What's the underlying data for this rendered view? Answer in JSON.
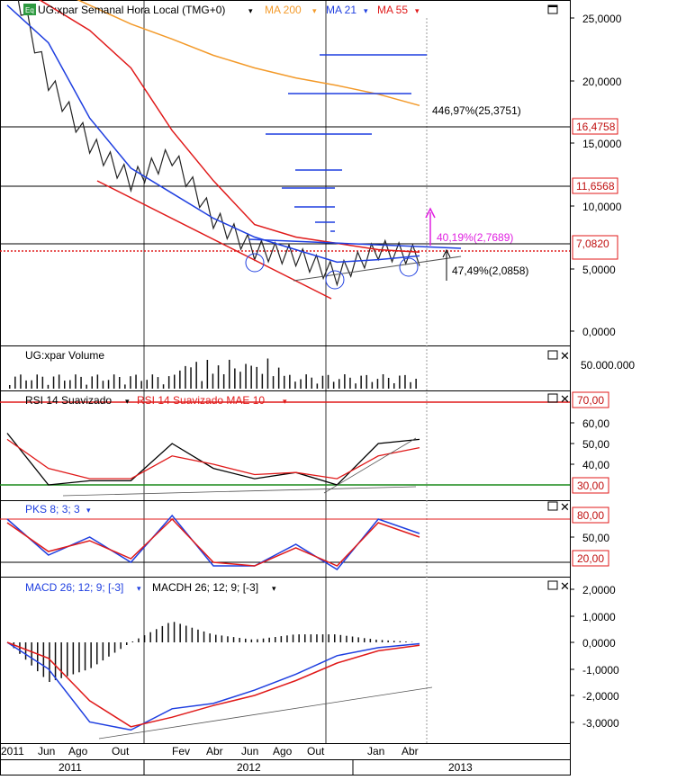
{
  "price_panel": {
    "eq_badge": "Eq",
    "title": "UG:xpar Semanal Hora Local (TMG+0)",
    "ma200_label": "MA 200",
    "ma21_label": "MA 21",
    "ma55_label": "MA 55",
    "y_ticks": [
      "25,0000",
      "20,0000",
      "15,0000",
      "10,0000",
      "5,0000",
      "0,0000"
    ],
    "level_tags": [
      "16,4758",
      "11,6568",
      "7,0820"
    ],
    "annot_target": "446,97%(25,3751)",
    "annot_up": "40,19%(2,7689)",
    "annot_down": "47,49%(2,0858)"
  },
  "volume_panel": {
    "title": "UG:xpar Volume",
    "y_tick": "50.000.000"
  },
  "rsi_panel": {
    "title1": "RSI 14 Suavizado",
    "title2": "RSI 14 Suavizado MAE 10",
    "y_ticks": [
      "60,00",
      "50,00",
      "40,00"
    ],
    "tag_top": "70,00",
    "tag_bottom": "30,00"
  },
  "pks_panel": {
    "title": "PKS 8; 3; 3",
    "y_tick": "50,00",
    "tag_top": "80,00",
    "tag_bottom": "20,00"
  },
  "macd_panel": {
    "title1": "MACD 26; 12; 9; [-3]",
    "title2": "MACDH 26; 12; 9; [-3]",
    "y_ticks": [
      "2,0000",
      "1,0000",
      "0,0000",
      "-1,0000",
      "-2,0000",
      "-3,0000"
    ]
  },
  "x_axis": {
    "months": [
      "2011",
      "Jun",
      "Ago",
      "Out",
      "Fev",
      "Abr",
      "Jun",
      "Ago",
      "Out",
      "Jan",
      "Abr"
    ],
    "years": [
      "2011",
      "2012",
      "2013"
    ]
  },
  "colors": {
    "ma21": "#1f3fe0",
    "ma55": "#e01a1a",
    "ma200": "#f39a2a",
    "rsi_signal": "#e01a1a",
    "accent_magenta": "#e020e0"
  },
  "chart_data": [
    {
      "type": "line",
      "title": "UG:xpar Semanal Hora Local (TMG+0)",
      "ylim": [
        -1,
        27
      ],
      "y_ticks": [
        0,
        5,
        10,
        15,
        20,
        25
      ],
      "x": [
        "2011",
        "Jun",
        "Ago",
        "Out",
        "Fev",
        "Abr",
        "Jun",
        "Ago",
        "Out",
        "Jan",
        "Abr"
      ],
      "series": [
        {
          "name": "UG:xpar",
          "values": [
            29,
            20,
            15,
            12,
            14,
            9,
            6.5,
            6,
            4.5,
            6.5,
            6
          ]
        },
        {
          "name": "MA 21",
          "values": [
            26,
            23,
            17,
            13,
            11,
            9,
            7.5,
            6.5,
            5.5,
            5.7,
            6
          ]
        },
        {
          "name": "MA 55",
          "values": [
            28,
            26,
            24,
            21,
            16,
            12,
            8.5,
            7.5,
            7,
            6.5,
            6.3
          ]
        },
        {
          "name": "MA 200",
          "values": [
            29,
            27.5,
            26,
            24.5,
            23.3,
            22,
            21,
            20.2,
            19.6,
            18.9,
            18
          ]
        }
      ],
      "levels": [
        16.4758,
        11.6568,
        7.082
      ],
      "annotations": [
        "446,97%(25,3751)",
        "40,19%(2,7689)",
        "47,49%(2,0858)"
      ]
    },
    {
      "type": "bar",
      "title": "UG:xpar Volume",
      "x": [
        "2011",
        "Jun",
        "Ago",
        "Out",
        "Fev",
        "Abr",
        "Jun",
        "Ago",
        "Out",
        "Jan",
        "Abr"
      ],
      "y_ticks": [
        50000000
      ]
    },
    {
      "type": "line",
      "ylim": [
        20,
        72
      ],
      "y_ticks": [
        30,
        40,
        50,
        60,
        70
      ],
      "x": [
        "2011",
        "Jun",
        "Ago",
        "Out",
        "Fev",
        "Abr",
        "Jun",
        "Ago",
        "Out",
        "Jan",
        "Abr"
      ],
      "series": [
        {
          "name": "RSI 14 Suavizado",
          "values": [
            55,
            30,
            32,
            32,
            50,
            38,
            33,
            36,
            30,
            50,
            52
          ]
        },
        {
          "name": "RSI 14 Suavizado MAE 10",
          "values": [
            52,
            38,
            33,
            33,
            44,
            40,
            35,
            36,
            33,
            44,
            48
          ]
        }
      ],
      "levels": [
        70,
        30
      ]
    },
    {
      "type": "line",
      "title": "PKS 8; 3; 3",
      "ylim": [
        0,
        100
      ],
      "y_ticks": [
        20,
        50,
        80
      ],
      "x": [
        "2011",
        "Jun",
        "Ago",
        "Out",
        "Fev",
        "Abr",
        "Jun",
        "Ago",
        "Out",
        "Jan",
        "Abr"
      ],
      "series": [
        {
          "values": [
            80,
            30,
            55,
            20,
            85,
            15,
            15,
            45,
            10,
            80,
            60
          ]
        },
        {
          "values": [
            75,
            35,
            50,
            25,
            80,
            20,
            15,
            40,
            15,
            75,
            55
          ]
        }
      ],
      "levels": [
        80,
        20
      ]
    },
    {
      "type": "bar",
      "ylim": [
        -3.5,
        2.5
      ],
      "y_ticks": [
        2,
        1,
        0,
        -1,
        -2,
        -3
      ],
      "x": [
        "2011",
        "Jun",
        "Ago",
        "Out",
        "Fev",
        "Abr",
        "Jun",
        "Ago",
        "Out",
        "Jan",
        "Abr"
      ],
      "series": [
        {
          "name": "MACD 26; 12; 9; [-3]",
          "values": [
            0,
            -1,
            -3,
            -3.3,
            -2.5,
            -2.3,
            -1.8,
            -1.2,
            -0.5,
            -0.2,
            -0.05
          ]
        },
        {
          "name": "MACDH 26; 12; 9; [-3]",
          "values": [
            0,
            -1.5,
            -1,
            0,
            0.8,
            0.3,
            0.1,
            0.3,
            0.3,
            0.1,
            0
          ]
        }
      ]
    }
  ]
}
